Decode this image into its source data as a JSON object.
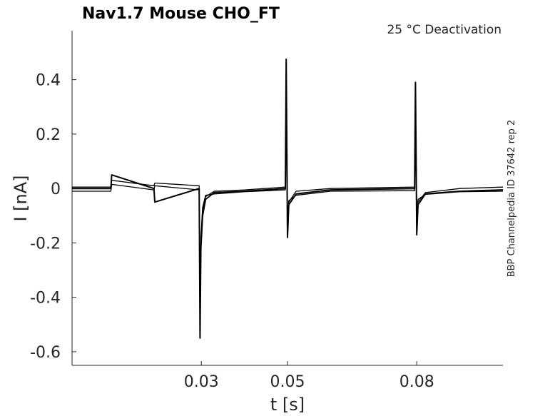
{
  "chart_data": {
    "type": "line",
    "title": "Nav1.7  Mouse  CHO_FT",
    "subtitle": "25 °C  Deactivation",
    "side_label": "BBP Channelpedia ID 37642 rep 2",
    "xlabel": "t [s]",
    "ylabel": "I [nA]",
    "xlim": [
      0.0,
      0.1
    ],
    "ylim": [
      -0.65,
      0.58
    ],
    "xticks": [
      0.03,
      0.05,
      0.08
    ],
    "xtick_labels": [
      "0.03",
      "0.05",
      "0.08"
    ],
    "yticks": [
      0.4,
      0.2,
      0,
      -0.2,
      -0.4,
      -0.6
    ],
    "ytick_labels": [
      "0.4",
      "0.2",
      "0",
      "-0.2",
      "-0.4",
      "-0.6"
    ],
    "grid": false,
    "line_color": "#000000",
    "events": [
      {
        "t": 0.009,
        "peak": 0.05
      },
      {
        "t": 0.019,
        "peak": -0.05
      },
      {
        "t": 0.0297,
        "peak": -0.55
      },
      {
        "t": 0.0497,
        "peak": 0.475
      },
      {
        "t": 0.05,
        "peak": -0.18
      },
      {
        "t": 0.0797,
        "peak": 0.39
      },
      {
        "t": 0.08,
        "peak": -0.17
      }
    ],
    "series": [
      {
        "values_x": [
          0.0,
          0.009,
          0.0092,
          0.019,
          0.0192,
          0.0295,
          0.0297,
          0.0299,
          0.0303,
          0.031,
          0.033,
          0.04,
          0.0495,
          0.0497,
          0.05,
          0.0503,
          0.052,
          0.06,
          0.0795,
          0.0797,
          0.08,
          0.0803,
          0.082,
          0.09,
          0.1
        ],
        "values_y": [
          0.0,
          0.0,
          0.05,
          0.0,
          -0.05,
          0.0,
          -0.55,
          -0.22,
          -0.1,
          -0.04,
          -0.015,
          -0.01,
          0.0,
          0.475,
          -0.18,
          -0.06,
          -0.02,
          -0.005,
          0.0,
          0.39,
          -0.17,
          -0.06,
          -0.02,
          -0.01,
          -0.005
        ]
      },
      {
        "values_x": [
          0.0,
          0.009,
          0.0092,
          0.019,
          0.0192,
          0.0295,
          0.0297,
          0.0299,
          0.0303,
          0.031,
          0.033,
          0.04,
          0.0495,
          0.0497,
          0.05,
          0.0503,
          0.052,
          0.06,
          0.0795,
          0.0797,
          0.08,
          0.0803,
          0.082,
          0.09,
          0.1
        ],
        "values_y": [
          0.005,
          0.005,
          0.03,
          0.01,
          0.02,
          0.01,
          -0.5,
          -0.2,
          -0.08,
          -0.03,
          -0.01,
          -0.005,
          0.005,
          0.45,
          -0.16,
          -0.05,
          -0.01,
          0.0,
          0.005,
          0.37,
          -0.15,
          -0.05,
          -0.015,
          0.0,
          0.005
        ]
      },
      {
        "values_x": [
          0.0,
          0.009,
          0.0092,
          0.019,
          0.0192,
          0.0295,
          0.0297,
          0.0299,
          0.0303,
          0.031,
          0.033,
          0.04,
          0.0495,
          0.0497,
          0.05,
          0.0503,
          0.052,
          0.06,
          0.0795,
          0.0797,
          0.08,
          0.0803,
          0.082,
          0.09,
          0.1
        ],
        "values_y": [
          -0.01,
          -0.01,
          0.015,
          -0.005,
          0.01,
          -0.005,
          -0.45,
          -0.18,
          -0.07,
          -0.025,
          -0.02,
          -0.012,
          -0.005,
          0.42,
          -0.14,
          -0.045,
          -0.025,
          -0.01,
          -0.008,
          0.35,
          -0.13,
          -0.04,
          -0.022,
          -0.012,
          -0.01
        ]
      }
    ]
  }
}
